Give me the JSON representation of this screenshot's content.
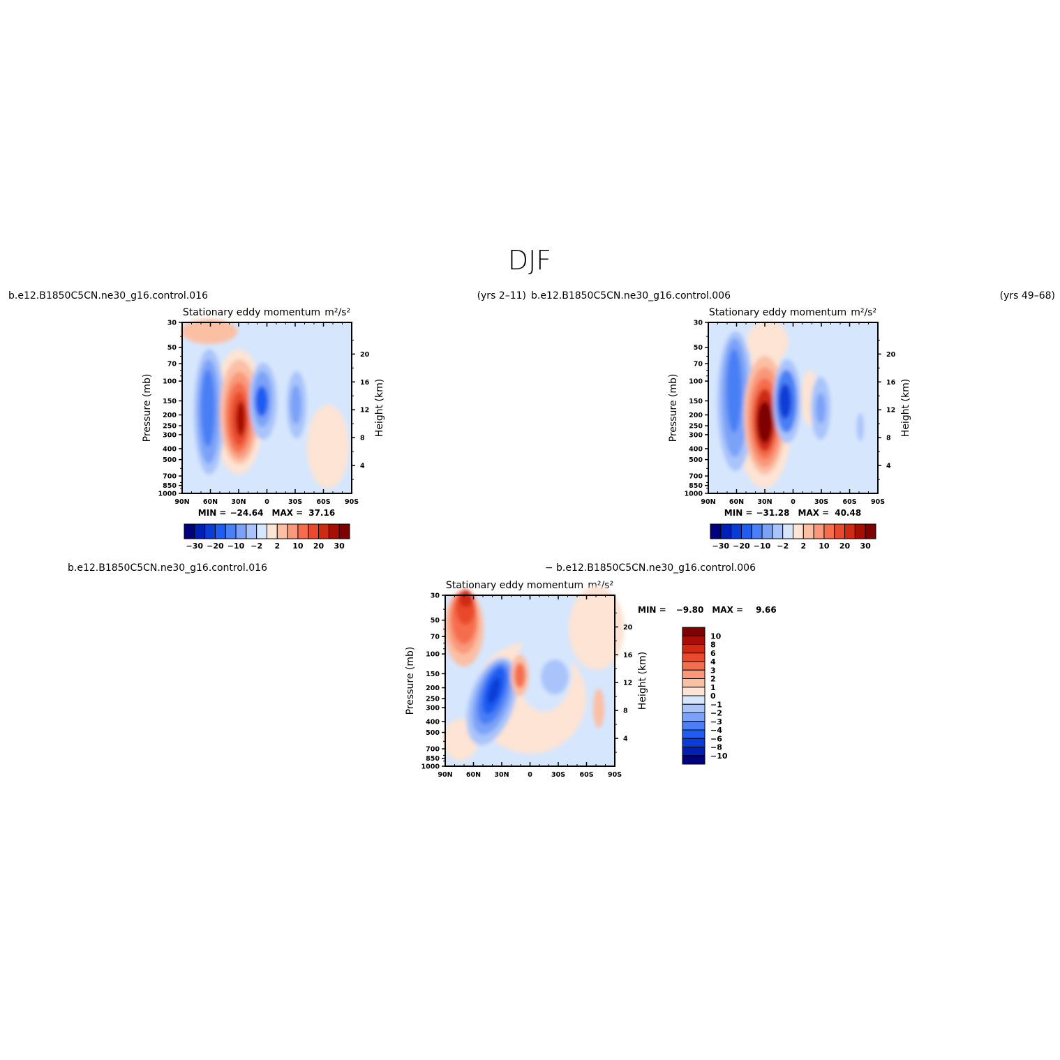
{
  "page_title": "DJF",
  "palette": {
    "diverging": [
      "#00007f",
      "#0020b5",
      "#0a3dd6",
      "#1f5cf2",
      "#4a7ff5",
      "#7ba2f7",
      "#a9c4fa",
      "#d6e6fd",
      "#fde4d4",
      "#fbbfa4",
      "#f9987a",
      "#f46e4e",
      "#e9492c",
      "#cf2a14",
      "#a80d06",
      "#7f0000"
    ]
  },
  "chart_data": [
    {
      "type": "contour",
      "left_title": "b.e12.B1850C5CN.ne30_g16.control.016",
      "right_title": "(yrs 2–11)",
      "center_title": "Stationary eddy momentum",
      "units": "m²/s²",
      "ylabel": "Pressure (mb)",
      "ylabel_right": "Height (km)",
      "x_ticks": [
        "90N",
        "60N",
        "30N",
        "0",
        "30S",
        "60S",
        "90S"
      ],
      "y_ticks": [
        "30",
        "50",
        "70",
        "100",
        "150",
        "200",
        "250",
        "300",
        "400",
        "500",
        "700",
        "850",
        "1000"
      ],
      "y_ticks_right": [
        "20",
        "16",
        "12",
        "8",
        "4"
      ],
      "min_label": "MIN =",
      "min_value": "−24.64",
      "max_label": "MAX =",
      "max_value": "37.16",
      "colorbar_labels": [
        "−30",
        "−20",
        "−10",
        "−2",
        "2",
        "10",
        "20",
        "30"
      ],
      "features": [
        {
          "lat": 55,
          "p": 180,
          "value": -20
        },
        {
          "lat": 28,
          "p": 200,
          "value": 37.16
        },
        {
          "lat": 7,
          "p": 150,
          "value": -24.64
        },
        {
          "lat": -32,
          "p": 160,
          "value": -8
        },
        {
          "lat": 70,
          "p": 35,
          "value": 8
        }
      ]
    },
    {
      "type": "contour",
      "left_title": "b.e12.B1850C5CN.ne30_g16.control.006",
      "right_title": "(yrs 49–68)",
      "center_title": "Stationary eddy momentum",
      "units": "m²/s²",
      "ylabel": "Pressure (mb)",
      "ylabel_right": "Height (km)",
      "x_ticks": [
        "90N",
        "60N",
        "30N",
        "0",
        "30S",
        "60S",
        "90S"
      ],
      "y_ticks": [
        "30",
        "50",
        "70",
        "100",
        "150",
        "200",
        "250",
        "300",
        "400",
        "500",
        "700",
        "850",
        "1000"
      ],
      "y_ticks_right": [
        "20",
        "16",
        "12",
        "8",
        "4"
      ],
      "min_label": "MIN =",
      "min_value": "−31.28",
      "max_label": "MAX =",
      "max_value": "40.48",
      "colorbar_labels": [
        "−30",
        "−20",
        "−10",
        "−2",
        "2",
        "10",
        "20",
        "30"
      ],
      "features": [
        {
          "lat": 57,
          "p": 150,
          "value": -22
        },
        {
          "lat": 30,
          "p": 220,
          "value": 40.48
        },
        {
          "lat": 8,
          "p": 150,
          "value": -31.28
        },
        {
          "lat": -30,
          "p": 160,
          "value": -6
        },
        {
          "lat": -72,
          "p": 280,
          "value": -3
        }
      ]
    },
    {
      "type": "contour",
      "left_title": "b.e12.B1850C5CN.ne30_g16.control.016",
      "right_title": "− b.e12.B1850C5CN.ne30_g16.control.006",
      "center_title": "Stationary eddy momentum",
      "units": "m²/s²",
      "ylabel": "Pressure (mb)",
      "ylabel_right": "Height (km)",
      "x_ticks": [
        "90N",
        "60N",
        "30N",
        "0",
        "30S",
        "60S",
        "90S"
      ],
      "y_ticks": [
        "30",
        "50",
        "70",
        "100",
        "150",
        "200",
        "250",
        "300",
        "400",
        "500",
        "700",
        "850",
        "1000"
      ],
      "y_ticks_right": [
        "20",
        "16",
        "12",
        "8",
        "4"
      ],
      "min_label": "MIN =",
      "min_value": "−9.80",
      "max_label": "MAX =",
      "max_value": "9.66",
      "colorbar_labels": [
        "10",
        "8",
        "6",
        "4",
        "3",
        "2",
        "1",
        "0",
        "−1",
        "−2",
        "−3",
        "−4",
        "−6",
        "−8",
        "−10"
      ],
      "features": [
        {
          "lat": 68,
          "p": 45,
          "value": 9.66
        },
        {
          "lat": 38,
          "p": 250,
          "value": -9.8
        },
        {
          "lat": 11,
          "p": 160,
          "value": 5
        },
        {
          "lat": -22,
          "p": 160,
          "value": -2
        },
        {
          "lat": -75,
          "p": 320,
          "value": 2
        }
      ]
    }
  ]
}
